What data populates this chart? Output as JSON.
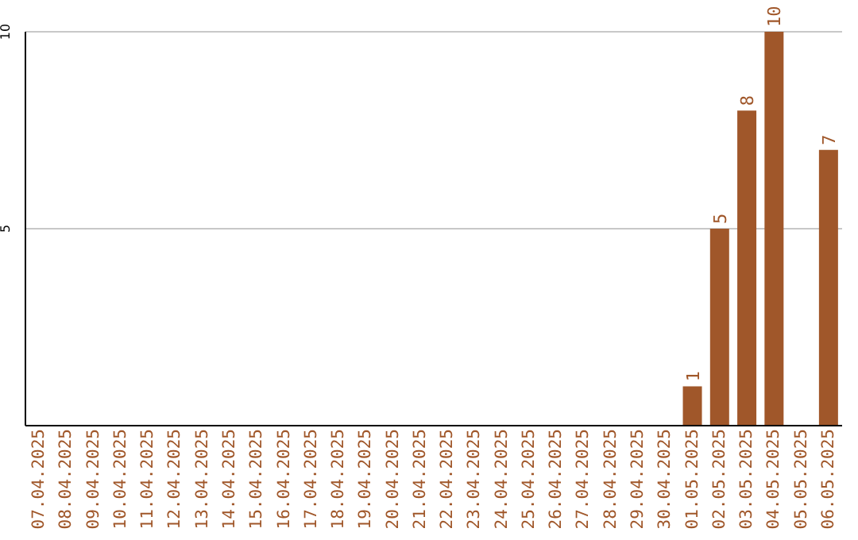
{
  "chart_data": {
    "type": "bar",
    "categories": [
      "07.04.2025",
      "08.04.2025",
      "09.04.2025",
      "10.04.2025",
      "11.04.2025",
      "12.04.2025",
      "13.04.2025",
      "14.04.2025",
      "15.04.2025",
      "16.04.2025",
      "17.04.2025",
      "18.04.2025",
      "19.04.2025",
      "20.04.2025",
      "21.04.2025",
      "22.04.2025",
      "23.04.2025",
      "24.04.2025",
      "25.04.2025",
      "26.04.2025",
      "27.04.2025",
      "28.04.2025",
      "29.04.2025",
      "30.04.2025",
      "01.05.2025",
      "02.05.2025",
      "03.05.2025",
      "04.05.2025",
      "05.05.2025",
      "06.05.2025"
    ],
    "values": [
      0,
      0,
      0,
      0,
      0,
      0,
      0,
      0,
      0,
      0,
      0,
      0,
      0,
      0,
      0,
      0,
      0,
      0,
      0,
      0,
      0,
      0,
      0,
      0,
      1,
      5,
      8,
      10,
      0,
      7
    ],
    "value_labels": [
      null,
      null,
      null,
      null,
      null,
      null,
      null,
      null,
      null,
      null,
      null,
      null,
      null,
      null,
      null,
      null,
      null,
      null,
      null,
      null,
      null,
      null,
      null,
      null,
      "1",
      "5",
      "8",
      "10",
      null,
      "7"
    ],
    "color": "#a0572a",
    "ylim": [
      0,
      10
    ],
    "yticks": [
      5,
      10
    ],
    "grid": "y"
  }
}
